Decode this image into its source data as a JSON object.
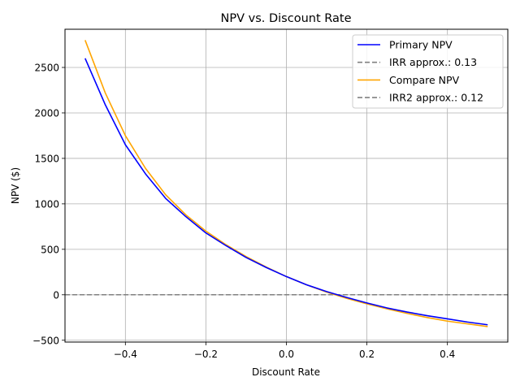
{
  "chart_data": {
    "type": "line",
    "title": "NPV vs. Discount Rate",
    "xlabel": "Discount Rate",
    "ylabel": "NPV ($)",
    "xlim": [
      -0.55,
      0.55
    ],
    "ylim": [
      -520,
      2920
    ],
    "xticks": [
      -0.4,
      -0.2,
      0.0,
      0.2,
      0.4
    ],
    "xtick_labels": [
      "−0.4",
      "−0.2",
      "0.0",
      "0.2",
      "0.4"
    ],
    "yticks": [
      -500,
      0,
      500,
      1000,
      1500,
      2000,
      2500
    ],
    "ytick_labels": [
      "−500",
      "0",
      "500",
      "1000",
      "1500",
      "2000",
      "2500"
    ],
    "grid": true,
    "legend_position": "top-right",
    "x": [
      -0.5,
      -0.45,
      -0.4,
      -0.35,
      -0.3,
      -0.25,
      -0.2,
      -0.15,
      -0.1,
      -0.05,
      0.0,
      0.05,
      0.1,
      0.15,
      0.2,
      0.25,
      0.3,
      0.35,
      0.4,
      0.45,
      0.5
    ],
    "series": [
      {
        "name": "Primary NPV",
        "color": "#0000ff",
        "style": "solid",
        "values": [
          2600,
          2090,
          1650,
          1330,
          1060,
          860,
          680,
          540,
          410,
          300,
          200,
          110,
          35,
          -30,
          -90,
          -145,
          -190,
          -230,
          -265,
          -300,
          -330
        ]
      },
      {
        "name": "Compare NPV",
        "color": "#ffa500",
        "style": "solid",
        "values": [
          2800,
          2220,
          1750,
          1390,
          1100,
          880,
          700,
          550,
          420,
          305,
          200,
          110,
          30,
          -40,
          -100,
          -155,
          -205,
          -250,
          -290,
          -320,
          -350
        ]
      }
    ],
    "hlines": [
      {
        "name": "IRR approx.: 0.13",
        "y": 0,
        "color": "#808080",
        "style": "dashed"
      },
      {
        "name": "IRR2 approx.: 0.12",
        "y": 0,
        "color": "#808080",
        "style": "dashed"
      }
    ]
  }
}
